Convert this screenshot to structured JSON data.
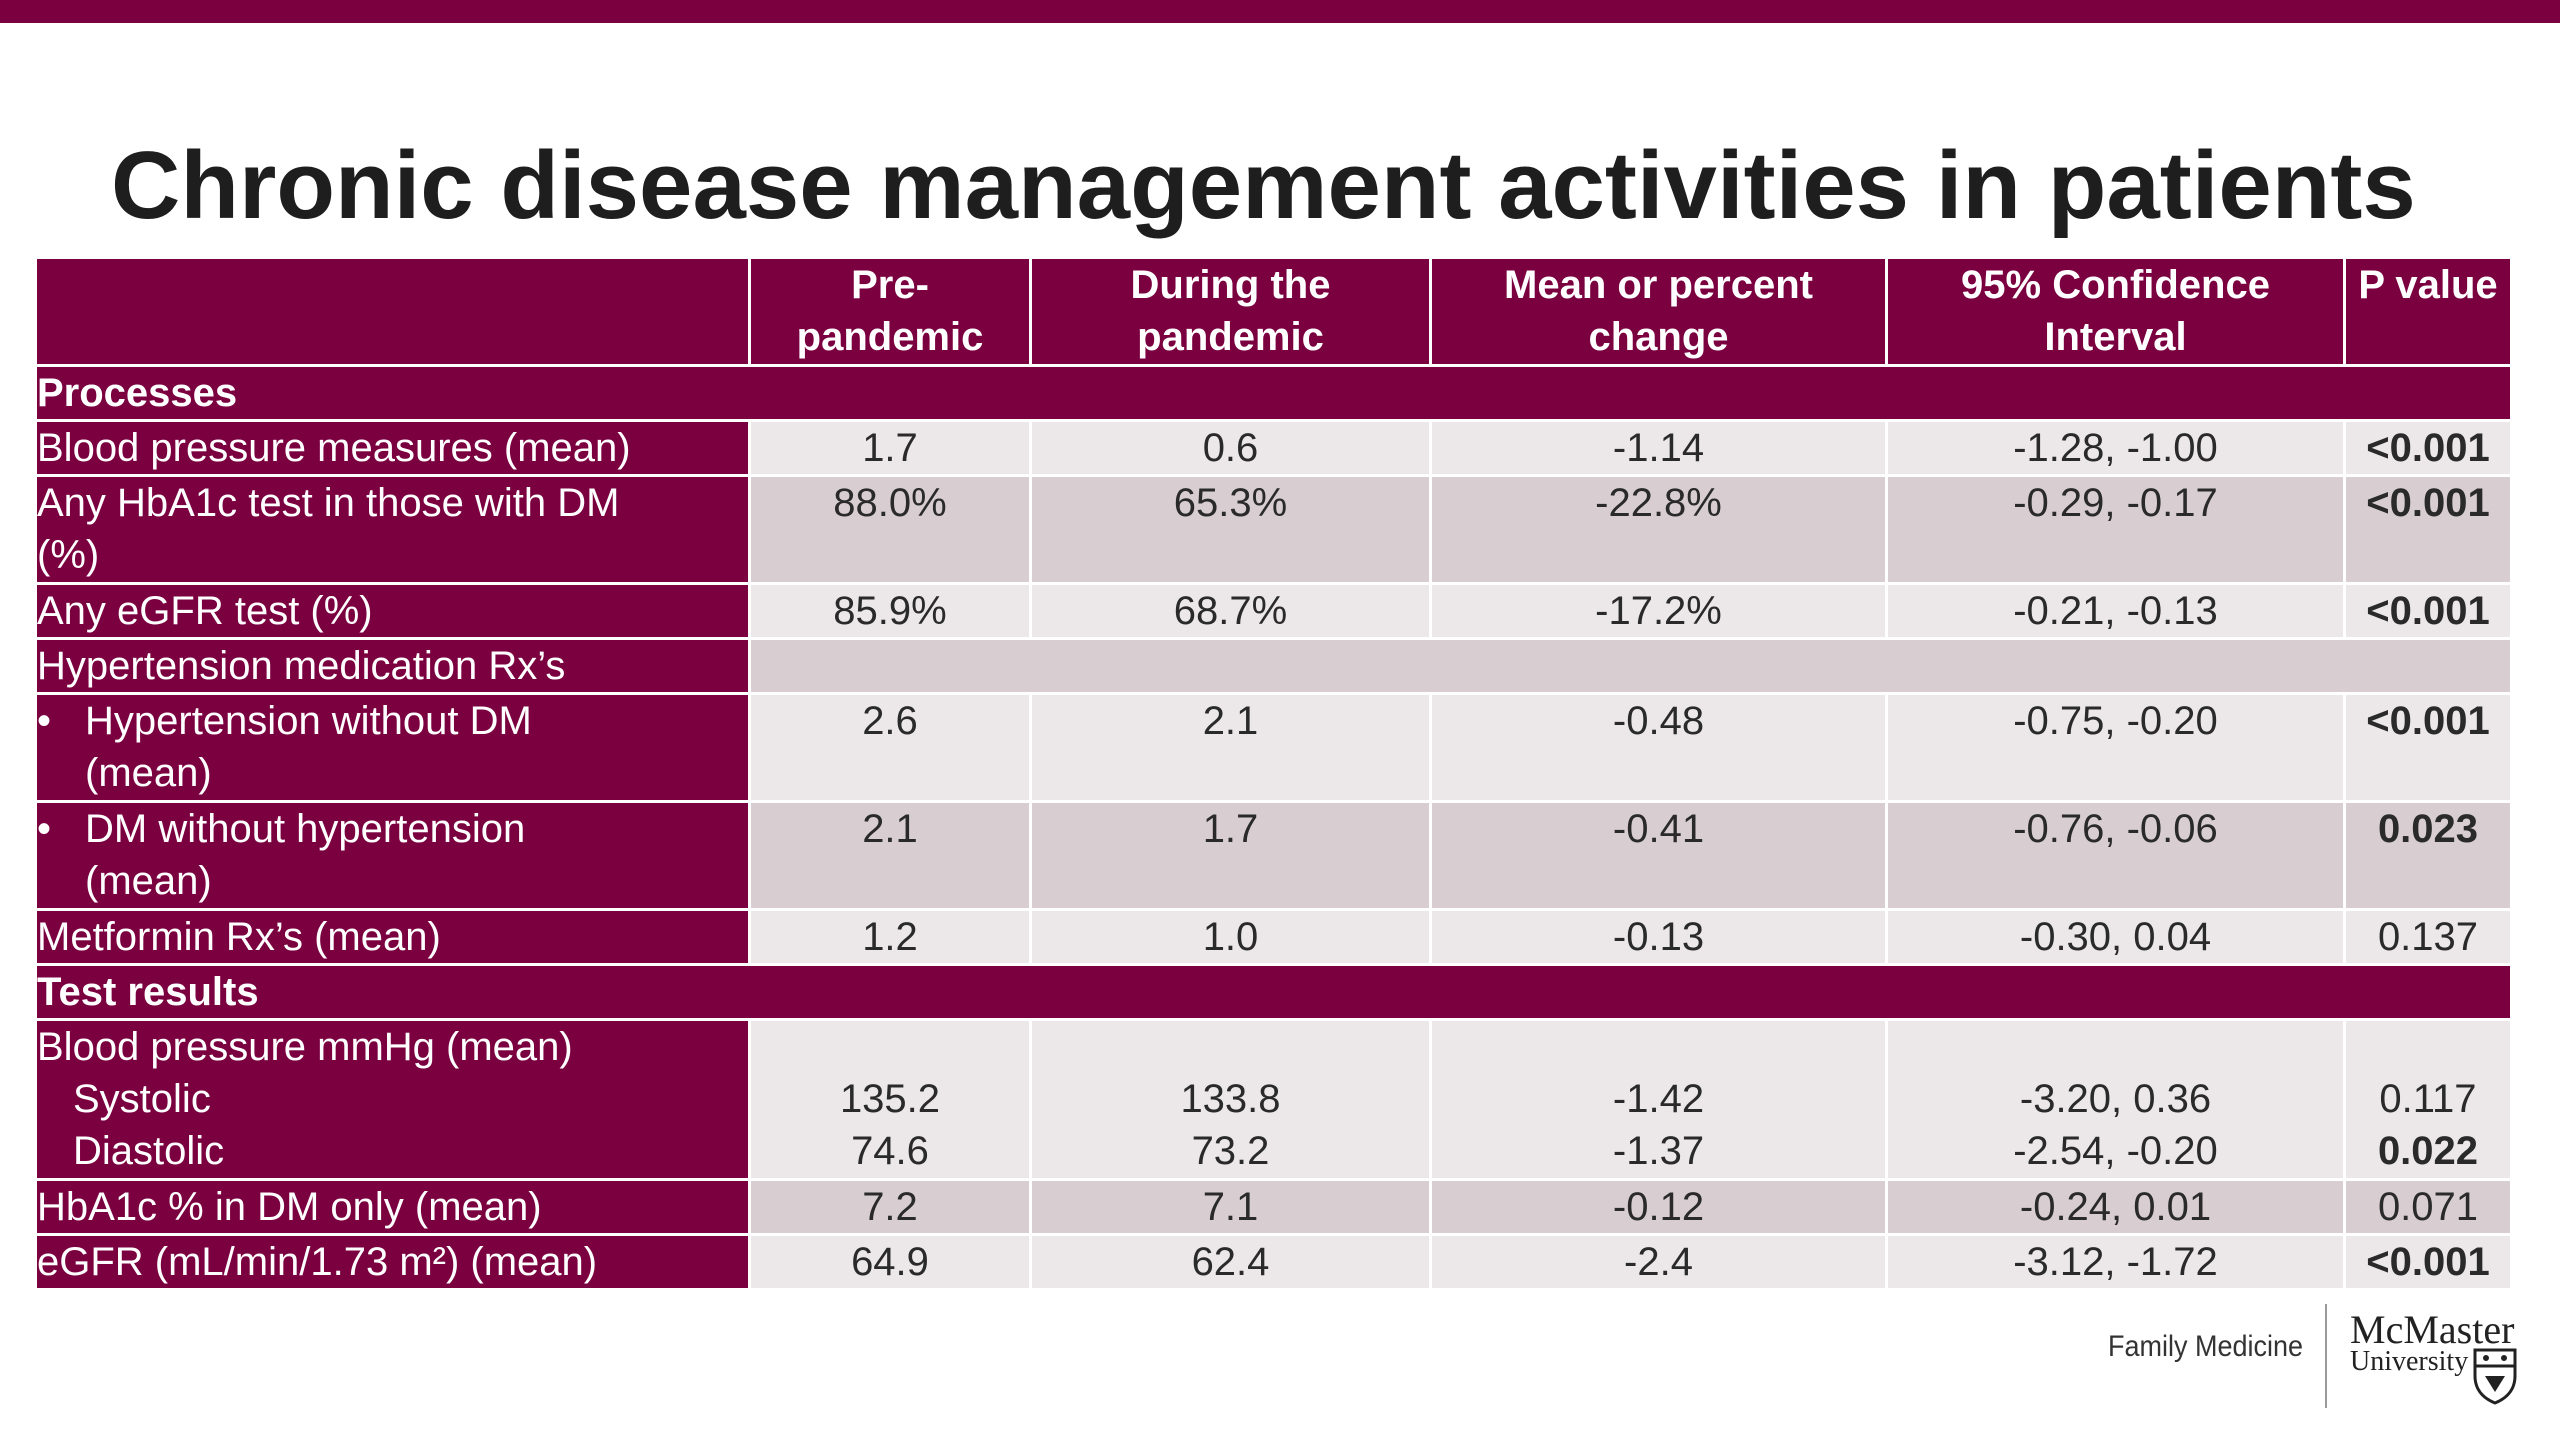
{
  "title": "Chronic disease management activities in patients",
  "headers": {
    "pre": [
      "Pre-",
      "pandemic"
    ],
    "during": [
      "During the",
      "pandemic"
    ],
    "change": [
      "Mean or percent",
      "change"
    ],
    "ci": [
      "95% Confidence",
      "Interval"
    ],
    "p": [
      "P value"
    ]
  },
  "sections": {
    "processes": "Processes",
    "test_results": "Test results"
  },
  "rows": [
    {
      "label": [
        "Blood pressure measures (mean)"
      ],
      "pre": "1.7",
      "during": "0.6",
      "change": "-1.14",
      "ci": "-1.28, -1.00",
      "p": "<0.001",
      "p_bold": true
    },
    {
      "label": [
        "Any HbA1c test in those with DM",
        "(%)"
      ],
      "pre": "88.0%",
      "during": "65.3%",
      "change": "-22.8%",
      "ci": "-0.29, -0.17",
      "p": "<0.001",
      "p_bold": true
    },
    {
      "label": [
        "Any eGFR test (%)"
      ],
      "pre": "85.9%",
      "during": "68.7%",
      "change": "-17.2%",
      "ci": "-0.21, -0.13",
      "p": "<0.001",
      "p_bold": true
    },
    {
      "label": [
        "Hypertension medication Rx’s"
      ]
    },
    {
      "bullet": "•",
      "label": [
        "Hypertension without DM",
        "(mean)"
      ],
      "pre": "2.6",
      "during": "2.1",
      "change": "-0.48",
      "ci": "-0.75, -0.20",
      "p": "<0.001",
      "p_bold": true
    },
    {
      "bullet": "•",
      "label": [
        "DM without hypertension",
        "(mean)"
      ],
      "pre": "2.1",
      "during": "1.7",
      "change": "-0.41",
      "ci": "-0.76, -0.06",
      "p": "0.023",
      "p_bold": true
    },
    {
      "label": [
        "Metformin Rx’s (mean)"
      ],
      "pre": "1.2",
      "during": "1.0",
      "change": "-0.13",
      "ci": "-0.30, 0.04",
      "p": "0.137",
      "p_bold": false
    },
    {
      "label": [
        "Blood pressure mmHg (mean)"
      ],
      "sub": [
        "Systolic",
        "Diastolic"
      ],
      "pre": [
        "135.2",
        "74.6"
      ],
      "during": [
        "133.8",
        "73.2"
      ],
      "change": [
        "-1.42",
        "-1.37"
      ],
      "ci": [
        "-3.20, 0.36",
        "-2.54, -0.20"
      ],
      "p": [
        "0.117",
        "0.022"
      ],
      "p_bold": [
        false,
        true
      ]
    },
    {
      "label": [
        "HbA1c % in DM only (mean)"
      ],
      "pre": "7.2",
      "during": "7.1",
      "change": "-0.12",
      "ci": "-0.24, 0.01",
      "p": "0.071",
      "p_bold": false
    },
    {
      "label": [
        "eGFR (mL/min/1.73 m²) (mean)"
      ],
      "pre": "64.9",
      "during": "62.4",
      "change": "-2.4",
      "ci": "-3.12, -1.72",
      "p": "<0.001",
      "p_bold": true
    }
  ],
  "footer": {
    "department": "Family Medicine",
    "university_name": "McMaster",
    "university_word": "University",
    "crest_icon": "shield-crest-icon"
  },
  "colors": {
    "brand": "#7b0040",
    "row_light": "#ece8ea",
    "row_dark": "#d8ced1"
  }
}
